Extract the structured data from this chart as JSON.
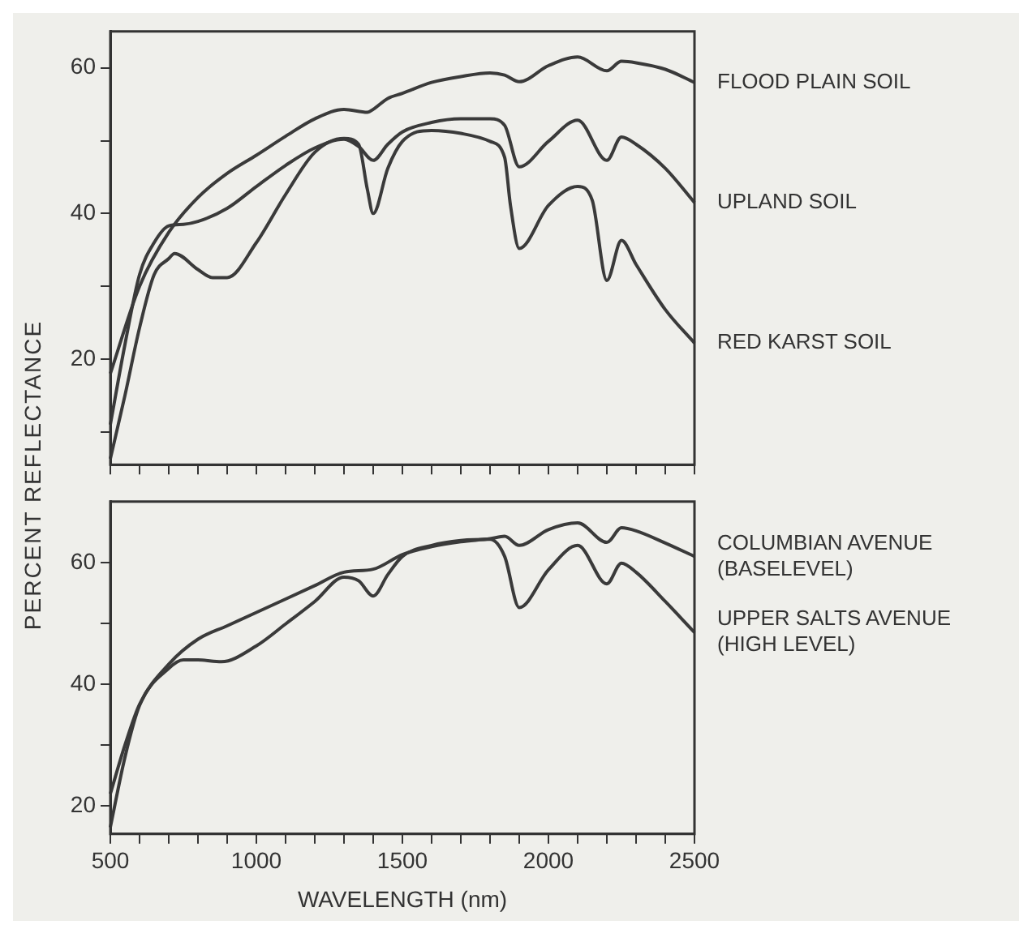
{
  "chart_data": [
    {
      "type": "line",
      "ylabel": "PERCENT REFLECTANCE",
      "xlim": [
        500,
        2500
      ],
      "ylim": [
        5.5,
        65
      ],
      "tick_labels": "y",
      "xticks": [
        500,
        {
          "value": 600,
          "label": null
        },
        {
          "value": 700,
          "label": null
        },
        {
          "value": 800,
          "label": null
        },
        {
          "value": 900,
          "label": null
        },
        1000,
        {
          "value": 1100,
          "label": null
        },
        {
          "value": 1200,
          "label": null
        },
        {
          "value": 1300,
          "label": null
        },
        {
          "value": 1400,
          "label": null
        },
        1500,
        {
          "value": 1600,
          "label": null
        },
        {
          "value": 1700,
          "label": null
        },
        {
          "value": 1800,
          "label": null
        },
        {
          "value": 1900,
          "label": null
        },
        2000,
        {
          "value": 2100,
          "label": null
        },
        {
          "value": 2200,
          "label": null
        },
        {
          "value": 2300,
          "label": null
        },
        {
          "value": 2400,
          "label": null
        },
        2500
      ],
      "yticks": [
        {
          "value": 10,
          "label": null
        },
        20,
        {
          "value": 30,
          "label": null
        },
        40,
        {
          "value": 50,
          "label": null
        },
        60
      ],
      "marker": "none",
      "line_style": "solid",
      "series": [
        {
          "name": "FLOOD PLAIN SOIL",
          "color": "#3a3a3a",
          "x": [
            500,
            600,
            700,
            800,
            900,
            1000,
            1100,
            1200,
            1300,
            1380,
            1400,
            1450,
            1500,
            1600,
            1700,
            1800,
            1850,
            1900,
            2000,
            2100,
            2200,
            2250,
            2300,
            2400,
            2500
          ],
          "values": [
            18,
            30,
            37.4,
            42.2,
            45.5,
            48,
            50.6,
            53,
            54.3,
            53.9,
            54.3,
            55.8,
            56.5,
            58,
            58.8,
            59.3,
            59,
            58.1,
            60.3,
            61.5,
            59.6,
            60.9,
            60.7,
            59.8,
            58
          ]
        },
        {
          "name": "UPLAND SOIL",
          "color": "#3a3a3a",
          "x": [
            500,
            550,
            600,
            650,
            700,
            750,
            800,
            900,
            1000,
            1100,
            1200,
            1300,
            1350,
            1400,
            1450,
            1500,
            1600,
            1700,
            1800,
            1850,
            1900,
            2000,
            2100,
            2200,
            2250,
            2300,
            2400,
            2500
          ],
          "values": [
            11,
            22,
            31.6,
            36,
            38.3,
            38.5,
            38.9,
            40.7,
            43.7,
            46.6,
            49,
            50.2,
            49.2,
            47.3,
            49.5,
            51.2,
            52.5,
            53,
            53,
            52.1,
            46.4,
            49.9,
            52.8,
            47.3,
            50.5,
            49.5,
            46.2,
            41.5
          ]
        },
        {
          "name": "RED KARST SOIL",
          "color": "#3a3a3a",
          "x": [
            500,
            550,
            600,
            650,
            700,
            720,
            800,
            850,
            900,
            1000,
            1100,
            1200,
            1300,
            1350,
            1380,
            1400,
            1450,
            1500,
            1600,
            1700,
            1800,
            1850,
            1870,
            1900,
            2000,
            2100,
            2150,
            2200,
            2250,
            2300,
            2400,
            2500
          ],
          "values": [
            6.3,
            15,
            24.3,
            31.6,
            33.8,
            34.5,
            32.3,
            31.2,
            31.2,
            36,
            42.6,
            48.4,
            50.3,
            49.5,
            43.3,
            40,
            46.2,
            49.9,
            51.4,
            51,
            49.9,
            47.7,
            41.1,
            35.2,
            41.1,
            43.7,
            41.8,
            30.8,
            36.3,
            33,
            26.8,
            22.2
          ]
        }
      ]
    },
    {
      "type": "line",
      "xlabel": "WAVELENGTH (nm)",
      "xlim": [
        500,
        2500
      ],
      "ylim": [
        15.4,
        70
      ],
      "xticks": [
        500,
        {
          "value": 600,
          "label": null
        },
        {
          "value": 700,
          "label": null
        },
        {
          "value": 800,
          "label": null
        },
        {
          "value": 900,
          "label": null
        },
        1000,
        {
          "value": 1100,
          "label": null
        },
        {
          "value": 1200,
          "label": null
        },
        {
          "value": 1300,
          "label": null
        },
        {
          "value": 1400,
          "label": null
        },
        1500,
        {
          "value": 1600,
          "label": null
        },
        {
          "value": 1700,
          "label": null
        },
        {
          "value": 1800,
          "label": null
        },
        {
          "value": 1900,
          "label": null
        },
        2000,
        {
          "value": 2100,
          "label": null
        },
        {
          "value": 2200,
          "label": null
        },
        {
          "value": 2300,
          "label": null
        },
        {
          "value": 2400,
          "label": null
        },
        2500
      ],
      "yticks": [
        20,
        {
          "value": 30,
          "label": null
        },
        40,
        {
          "value": 50,
          "label": null
        },
        60
      ],
      "marker": "none",
      "line_style": "solid",
      "series": [
        {
          "name": "COLUMBIAN AVENUE (BASELEVEL)",
          "color": "#3a3a3a",
          "x": [
            500,
            550,
            600,
            700,
            800,
            900,
            1000,
            1100,
            1200,
            1300,
            1400,
            1500,
            1600,
            1700,
            1800,
            1850,
            1900,
            2000,
            2100,
            2200,
            2250,
            2300,
            2400,
            2500
          ],
          "values": [
            22,
            30,
            36.7,
            43.3,
            47.4,
            49.6,
            51.8,
            54,
            56.2,
            58.4,
            58.9,
            61.3,
            62.6,
            63.4,
            63.9,
            64.3,
            62.8,
            65.4,
            66.5,
            63.3,
            65.7,
            65.2,
            63.2,
            61
          ]
        },
        {
          "name": "UPPER SALTS AVENUE (HIGH LEVEL)",
          "color": "#3a3a3a",
          "x": [
            500,
            550,
            600,
            700,
            750,
            800,
            880,
            1000,
            1100,
            1200,
            1300,
            1350,
            1400,
            1450,
            1500,
            1600,
            1700,
            1800,
            1850,
            1900,
            2000,
            2100,
            2200,
            2250,
            2300,
            2400,
            2500
          ],
          "values": [
            16.5,
            28,
            36.5,
            42.6,
            44,
            44,
            43.7,
            46.3,
            49.9,
            53.6,
            57.6,
            57,
            54.5,
            58,
            61,
            62.8,
            63.6,
            63.8,
            61,
            52.6,
            58.8,
            62.8,
            56.5,
            59.9,
            58.4,
            53.6,
            48.5
          ]
        }
      ]
    }
  ]
}
